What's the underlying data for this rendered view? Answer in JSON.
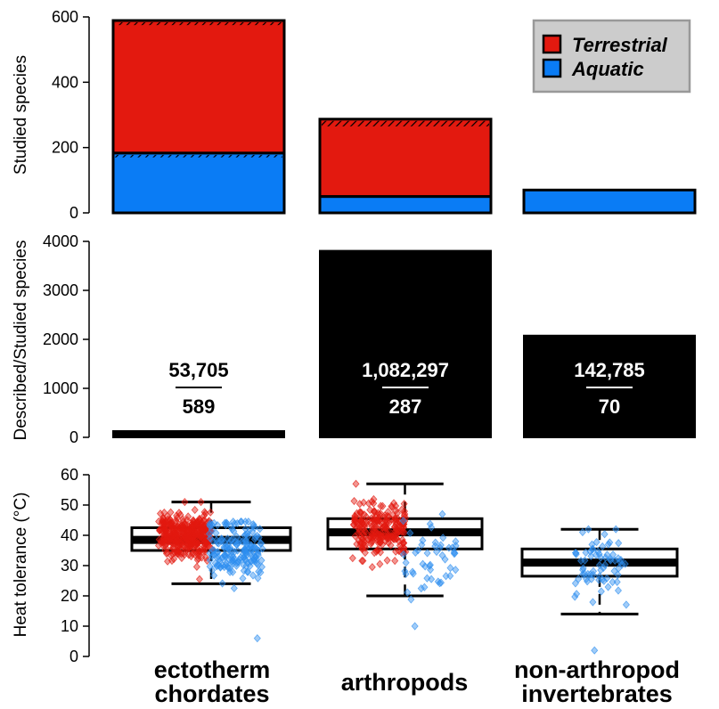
{
  "chart_data": [
    {
      "type": "bar",
      "stacked": true,
      "title": "",
      "ylabel": "Studied species",
      "ylim": [
        0,
        600
      ],
      "yticks": [
        "0",
        "200",
        "400",
        "600"
      ],
      "categories": [
        "ectotherm chordates",
        "arthropods",
        "non-arthropod invertebrates"
      ],
      "series": [
        {
          "name": "Aquatic",
          "values": [
            183,
            50,
            70
          ],
          "color": "#0a7cf5"
        },
        {
          "name": "Terrestrial",
          "values": [
            406,
            237,
            0
          ],
          "color": "#e3190f"
        }
      ],
      "totals": [
        589,
        287,
        70
      ],
      "hatched_top_bands": [
        [
          170,
          183
        ],
        [
          575,
          589
        ],
        [
          265,
          287
        ]
      ],
      "legend": {
        "position": "top-right",
        "entries": [
          "Terrestrial",
          "Aquatic"
        ]
      }
    },
    {
      "type": "bar",
      "ylabel": "Described/Studied species",
      "ylim": [
        0,
        4000
      ],
      "yticks": [
        "0",
        "1000",
        "2000",
        "3000",
        "4000"
      ],
      "categories": [
        "ectotherm chordates",
        "arthropods",
        "non-arthropod invertebrates"
      ],
      "values": [
        91.2,
        3771,
        2040
      ],
      "labels": [
        {
          "numerator": "53,705",
          "denominator": "589"
        },
        {
          "numerator": "1,082,297",
          "denominator": "287"
        },
        {
          "numerator": "142,785",
          "denominator": "70"
        }
      ]
    },
    {
      "type": "box",
      "ylabel": "Heat tolerance (°C)",
      "ylim": [
        0,
        60
      ],
      "yticks": [
        "0",
        "10",
        "20",
        "30",
        "40",
        "50",
        "60"
      ],
      "categories": [
        "ectotherm chordates",
        "arthropods",
        "non-arthropod invertebrates"
      ],
      "boxes": [
        {
          "whisker_low": 24,
          "q1": 35,
          "median": 38.5,
          "q3": 42.5,
          "whisker_high": 51
        },
        {
          "whisker_low": 20,
          "q1": 35.5,
          "median": 41,
          "q3": 45.5,
          "whisker_high": 57
        },
        {
          "whisker_low": 14,
          "q1": 26.5,
          "median": 31,
          "q3": 35.5,
          "whisker_high": 42
        }
      ],
      "points": [
        {
          "terrestrial": {
            "n": 406,
            "mean": 40,
            "sd": 5,
            "min": 25.5,
            "max": 51
          },
          "aquatic": {
            "n": 183,
            "mean": 35,
            "sd": 6.5,
            "min": 6,
            "max": 44.5
          }
        },
        {
          "terrestrial": {
            "n": 237,
            "mean": 42,
            "sd": 6,
            "min": 29.5,
            "max": 57
          },
          "aquatic": {
            "n": 50,
            "mean": 33,
            "sd": 9,
            "min": 10,
            "max": 47
          }
        },
        {
          "terrestrial": {
            "n": 0
          },
          "aquatic": {
            "n": 70,
            "mean": 30,
            "sd": 8,
            "min": 2,
            "max": 42
          }
        }
      ],
      "point_colors": {
        "terrestrial": "#e3190f",
        "aquatic": "#2e8ef0"
      }
    }
  ],
  "x_labels": [
    [
      "ectotherm",
      "chordates"
    ],
    [
      "arthropods"
    ],
    [
      "non-arthropod",
      "invertebrates"
    ]
  ]
}
